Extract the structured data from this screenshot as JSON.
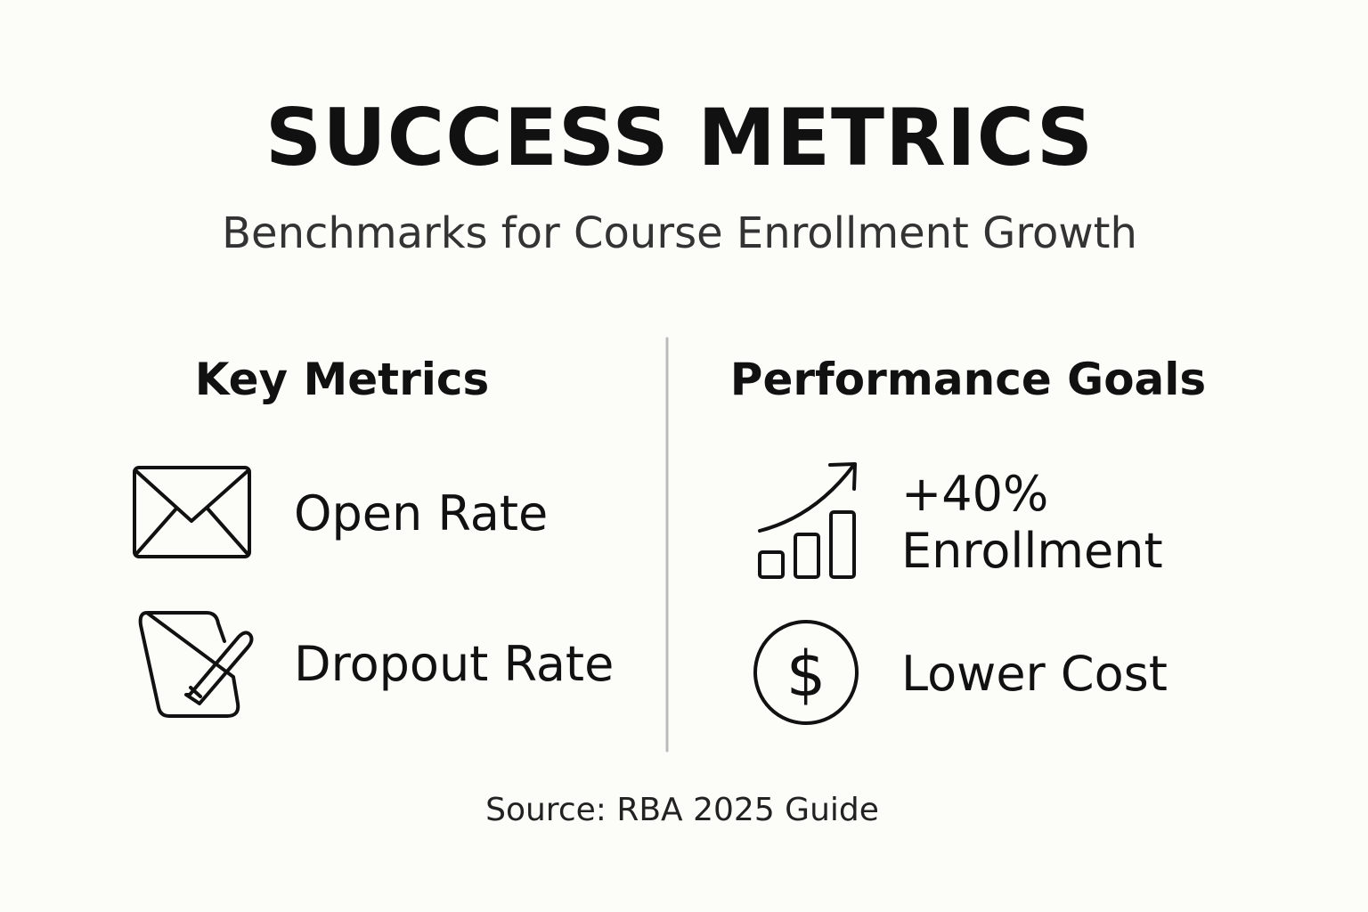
{
  "header": {
    "title": "SUCCESS METRICS",
    "subtitle": "Benchmarks for Course Enrollment Growth"
  },
  "columns": [
    {
      "title": "Key Metrics",
      "items": [
        "Open Rate",
        "Dropout Rate"
      ]
    },
    {
      "title": "Performance Goals",
      "items": [
        {
          "value": "+40%",
          "label": "Enrollment"
        },
        "Lower Cost"
      ]
    }
  ],
  "footer": {
    "source": "Source: RBA 2025 Guide"
  }
}
